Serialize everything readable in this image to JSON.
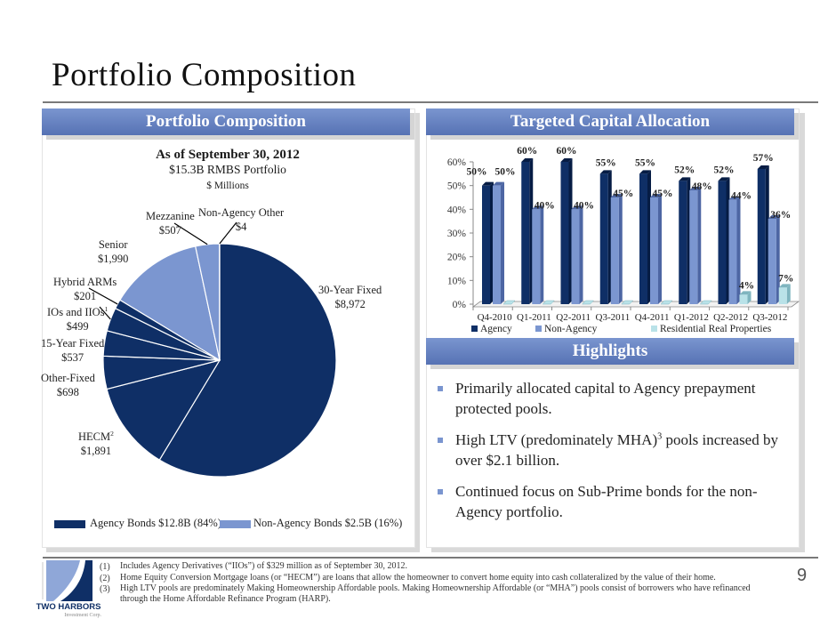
{
  "page": {
    "title": "Portfolio Composition",
    "page_number": "9"
  },
  "left_panel": {
    "header": "Portfolio Composition",
    "subtitle_date": "As of September 30, 2012",
    "subtitle_portfolio": "$15.3B RMBS Portfolio",
    "units": "$ Millions"
  },
  "right_top_panel": {
    "header": "Targeted Capital Allocation"
  },
  "highlights": {
    "header": "Highlights",
    "items": [
      {
        "text": "Primarily allocated capital to Agency prepayment protected pools."
      },
      {
        "text_before": "High LTV (predominately MHA)",
        "sup": "3",
        "text_after": " pools increased by over $2.1 billion."
      },
      {
        "text": "Continued focus on Sub-Prime bonds for the non-Agency portfolio."
      }
    ]
  },
  "footnotes": [
    {
      "num": "(1)",
      "text": "Includes Agency Derivatives (“IIOs”) of $329 million as of September 30, 2012."
    },
    {
      "num": "(2)",
      "text": "Home Equity Conversion Mortgage loans (or “HECM”) are loans that allow the homeowner to convert home equity into cash collateralized by the value of their home."
    },
    {
      "num": "(3)",
      "text": "High LTV pools are predominately Making Homeownership Affordable pools. Making Homeownership Affordable (or “MHA”) pools consist of borrowers who have refinanced",
      "text2": "through the Home Affordable Refinance Program (HARP)."
    }
  ],
  "logo": {
    "name": "TWO HARBORS",
    "tagline": "Investment Corp."
  },
  "colors": {
    "agency": "#0f2f66",
    "non_agency": "#7b96d0",
    "residential": "#b9e2e8",
    "header_top": "#7a95cf",
    "header_bottom": "#5672b4"
  },
  "chart_data": [
    {
      "type": "pie",
      "title": "As of September 30, 2012",
      "subtitle": "$15.3B RMBS Portfolio",
      "units": "$ Millions",
      "slices": [
        {
          "label": "30-Year Fixed",
          "value": 8972,
          "display": "$8,972",
          "group": "agency"
        },
        {
          "label": "HECM",
          "sup": "2",
          "value": 1891,
          "display": "$1,891",
          "group": "agency"
        },
        {
          "label": "Other-Fixed",
          "value": 698,
          "display": "$698",
          "group": "agency"
        },
        {
          "label": "15-Year Fixed",
          "value": 537,
          "display": "$537",
          "group": "agency"
        },
        {
          "label": "IOs and IIOs",
          "sup": "1",
          "value": 499,
          "display": "$499",
          "group": "agency"
        },
        {
          "label": "Hybrid ARMs",
          "value": 201,
          "display": "$201",
          "group": "agency"
        },
        {
          "label": "Senior",
          "value": 1990,
          "display": "$1,990",
          "group": "non_agency"
        },
        {
          "label": "Mezzanine",
          "value": 507,
          "display": "$507",
          "group": "non_agency"
        },
        {
          "label": "Non-Agency Other",
          "value": 4,
          "display": "$4",
          "group": "non_agency"
        }
      ],
      "legend": [
        {
          "label": "Agency Bonds $12.8B (84%)",
          "group": "agency"
        },
        {
          "label": "Non-Agency Bonds $2.5B (16%)",
          "group": "non_agency"
        }
      ],
      "legend_position": "bottom"
    },
    {
      "type": "bar",
      "title": "Targeted Capital Allocation",
      "categories": [
        "Q4-2010",
        "Q1-2011",
        "Q2-2011",
        "Q3-2011",
        "Q4-2011",
        "Q1-2012",
        "Q2-2012",
        "Q3-2012"
      ],
      "series": [
        {
          "name": "Agency",
          "key": "agency",
          "values": [
            50,
            60,
            60,
            55,
            55,
            52,
            52,
            57
          ]
        },
        {
          "name": "Non-Agency",
          "key": "non_agency",
          "values": [
            50,
            40,
            40,
            45,
            45,
            48,
            44,
            36
          ]
        },
        {
          "name": "Residential Real Properties",
          "key": "residential",
          "values": [
            0,
            0,
            0,
            0,
            0,
            0,
            4,
            7
          ]
        }
      ],
      "data_labels_shown": {
        "residential": [
          false,
          false,
          false,
          false,
          false,
          false,
          true,
          true
        ]
      },
      "yticks": [
        "0%",
        "10%",
        "20%",
        "30%",
        "40%",
        "50%",
        "60%"
      ],
      "ylim": [
        0,
        60
      ],
      "xlabel": "",
      "ylabel": "",
      "grid": false,
      "legend_position": "bottom"
    }
  ]
}
